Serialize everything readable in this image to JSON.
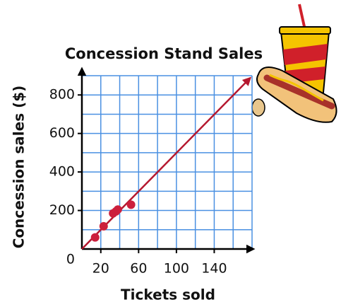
{
  "chart_data": {
    "type": "scatter",
    "title": "Concession Stand Sales",
    "x_label": "Tickets sold",
    "y_label": "Concession sales ($)",
    "x": [
      14,
      23,
      33,
      36,
      38,
      52
    ],
    "values": [
      60,
      118,
      185,
      195,
      205,
      230
    ],
    "color": "#cc1f3c",
    "trend_line": {
      "x": [
        0,
        178
      ],
      "y": [
        0,
        888
      ],
      "color": "#b5182f"
    },
    "xlim": [
      0,
      180
    ],
    "ylim": [
      0,
      900
    ],
    "xticks": [
      0,
      20,
      60,
      100,
      140
    ],
    "yticks": [
      200,
      400,
      600,
      800
    ],
    "x_grid": [
      20,
      40,
      60,
      80,
      100,
      120,
      140,
      160,
      180
    ],
    "y_grid": [
      100,
      200,
      300,
      400,
      500,
      600,
      700,
      800,
      900
    ],
    "grid": true,
    "grid_color": "#4a90e2"
  }
}
